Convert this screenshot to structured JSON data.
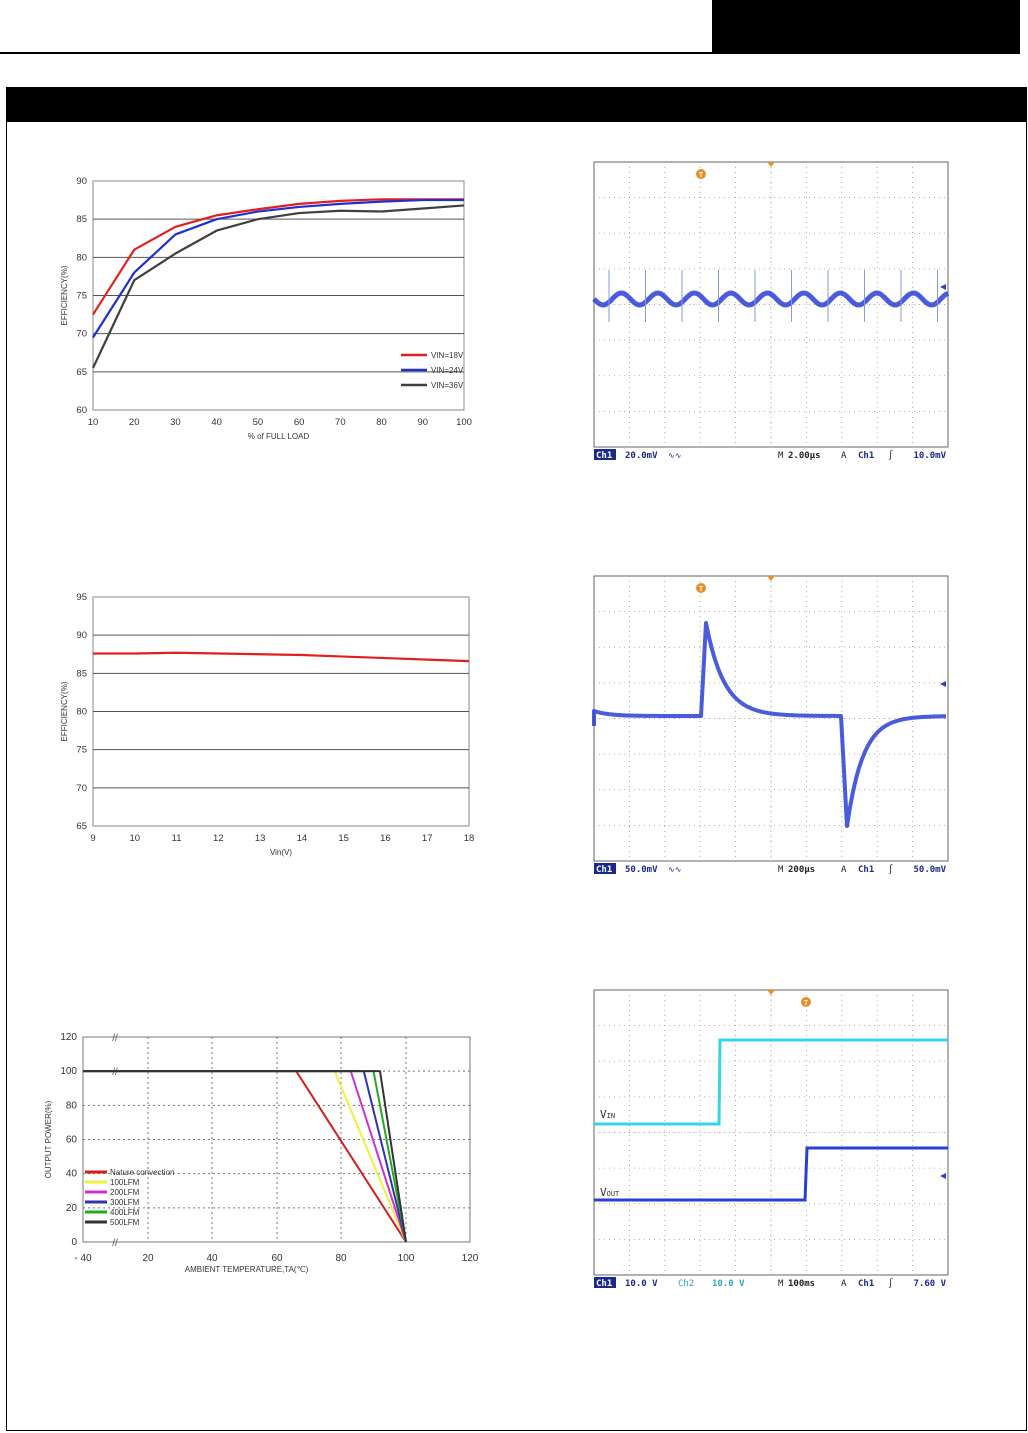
{
  "chart_data": [
    {
      "type": "line",
      "title": "",
      "xlabel": "% of FULL LOAD",
      "ylabel": "EFFICIENCY(%)",
      "xlim": [
        10,
        100
      ],
      "ylim": [
        60,
        90
      ],
      "xticks": [
        "10",
        "20",
        "30",
        "40",
        "50",
        "60",
        "70",
        "80",
        "90",
        "100"
      ],
      "yticks": [
        "60",
        "65",
        "70",
        "75",
        "80",
        "85",
        "90"
      ],
      "grid": "horizontal",
      "legend": "bottom-right",
      "x": [
        10,
        20,
        30,
        40,
        50,
        60,
        70,
        80,
        90,
        100
      ],
      "series": [
        {
          "name": "VIN=18V",
          "color": "#e02020",
          "values": [
            72.5,
            81,
            84,
            85.5,
            86.3,
            87,
            87.4,
            87.6,
            87.6,
            87.6
          ]
        },
        {
          "name": "VIN=24V",
          "color": "#2030d0",
          "values": [
            69.5,
            78,
            83,
            85,
            86,
            86.6,
            87,
            87.3,
            87.5,
            87.5
          ]
        },
        {
          "name": "VIN=36V",
          "color": "#404040",
          "values": [
            65.5,
            77,
            80.5,
            83.5,
            85,
            85.8,
            86.1,
            86,
            86.4,
            86.8
          ]
        }
      ]
    },
    {
      "type": "line",
      "title": "",
      "xlabel": "Vin(V)",
      "ylabel": "EFFICIENCY(%)",
      "xlim": [
        9,
        18
      ],
      "ylim": [
        65,
        95
      ],
      "xticks": [
        "9",
        "10",
        "11",
        "12",
        "13",
        "14",
        "15",
        "16",
        "17",
        "18"
      ],
      "yticks": [
        "65",
        "70",
        "75",
        "80",
        "85",
        "90",
        "95"
      ],
      "grid": "horizontal",
      "x": [
        9,
        10,
        11,
        12,
        13,
        14,
        15,
        16,
        17,
        18
      ],
      "series": [
        {
          "name": "",
          "color": "#e02020",
          "values": [
            87.6,
            87.6,
            87.7,
            87.6,
            87.5,
            87.4,
            87.2,
            87.0,
            86.8,
            86.6
          ]
        }
      ]
    },
    {
      "type": "line",
      "title": "",
      "xlabel": "AMBIENT TEMPERATURE,TA(℃)",
      "ylabel": "OUTPUT POWER(%)",
      "xlim": [
        -40,
        120
      ],
      "ylim": [
        0,
        120
      ],
      "xticks": [
        "- 40",
        "20",
        "40",
        "60",
        "80",
        "100",
        "120"
      ],
      "yticks": [
        "0",
        "20",
        "40",
        "60",
        "80",
        "100",
        "120"
      ],
      "grid": "dotted",
      "legend": "bottom-left",
      "series": [
        {
          "name": "Nature convection",
          "color": "#cc2222",
          "points": [
            [
              -40,
              100
            ],
            [
              66,
              100
            ],
            [
              100,
              0
            ]
          ]
        },
        {
          "name": "100LFM",
          "color": "#f0f040",
          "points": [
            [
              -40,
              100
            ],
            [
              78,
              100
            ],
            [
              100,
              0
            ]
          ]
        },
        {
          "name": "200LFM",
          "color": "#cc33cc",
          "points": [
            [
              -40,
              100
            ],
            [
              83,
              100
            ],
            [
              100,
              0
            ]
          ]
        },
        {
          "name": "300LFM",
          "color": "#3333aa",
          "points": [
            [
              -40,
              100
            ],
            [
              87,
              100
            ],
            [
              100,
              0
            ]
          ]
        },
        {
          "name": "400LFM",
          "color": "#22aa22",
          "points": [
            [
              -40,
              100
            ],
            [
              90,
              100
            ],
            [
              100,
              0
            ]
          ]
        },
        {
          "name": "500LFM",
          "color": "#333333",
          "points": [
            [
              -40,
              100
            ],
            [
              92,
              100
            ],
            [
              100,
              0
            ]
          ]
        }
      ]
    }
  ],
  "scopes": [
    {
      "status": {
        "channel": "Ch1",
        "scale": "20.0mV",
        "coupling": "∿∿",
        "timebase_prefix": "M",
        "timebase": "2.00μs",
        "trigger_mode": "A",
        "trigger_channel": "Ch1",
        "trigger_slope": "∫",
        "trigger_level": "10.0mV"
      },
      "trace_color": "#2a3fd6",
      "waveform": "ripple"
    },
    {
      "status": {
        "channel": "Ch1",
        "scale": "50.0mV",
        "coupling": "∿∿",
        "timebase_prefix": "M",
        "timebase": "200μs",
        "trigger_mode": "A",
        "trigger_channel": "Ch1",
        "trigger_slope": "∫",
        "trigger_level": "50.0mV"
      },
      "trace_color": "#2a3fd6",
      "waveform": "transient"
    },
    {
      "status": {
        "channel": "Ch1",
        "scale": "10.0 V",
        "channel2": "Ch2",
        "scale2": "10.0 V",
        "timebase_prefix": "M",
        "timebase": "100ms",
        "trigger_mode": "A",
        "trigger_channel": "Ch1",
        "trigger_slope": "∫",
        "trigger_level": "7.60 V"
      },
      "labels": {
        "vin_main": "V",
        "vin_sub": "IN",
        "vout_main": "V",
        "vout_sub": "OUT"
      },
      "trace_color": "#2a3fd6",
      "trace2_color": "#33d6e6",
      "waveform": "startup"
    }
  ]
}
